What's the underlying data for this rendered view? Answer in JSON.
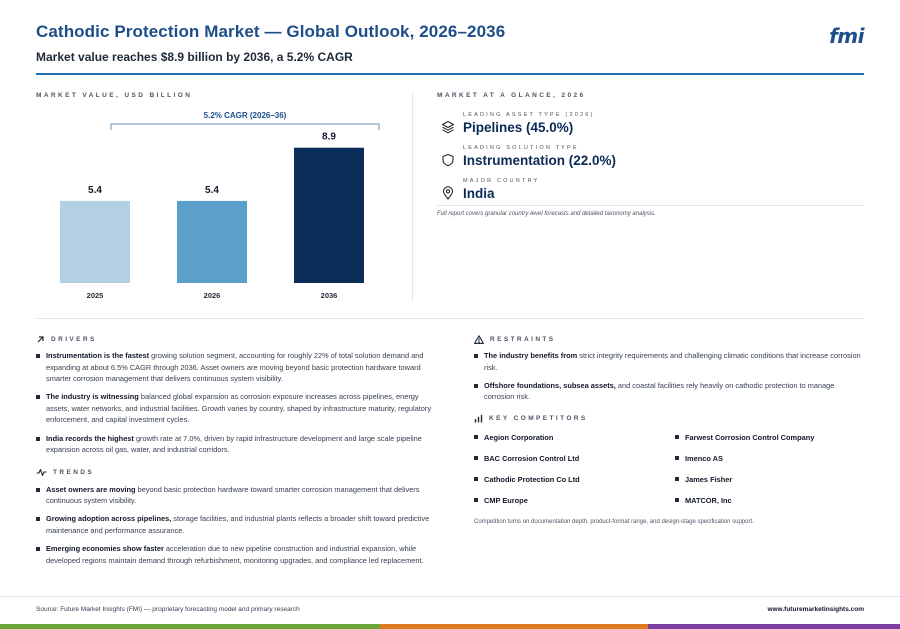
{
  "header": {
    "title": "Cathodic Protection Market — Global Outlook, 2026–2036",
    "subtitle": "Market value reaches $8.9 billion by 2036, a 5.2% CAGR",
    "logo": "fmi",
    "brand_color": "#1d4e89"
  },
  "chart_section": {
    "label": "MARKET VALUE, USD BILLION"
  },
  "chart_data": {
    "type": "bar",
    "categories": [
      "2025",
      "2026",
      "2036"
    ],
    "values": [
      5.4,
      5.4,
      8.9
    ],
    "value_labels": [
      "5.4",
      "5.4",
      "8.9"
    ],
    "colors": [
      "#b3cfe2",
      "#5b9fcb",
      "#0b2d5a"
    ],
    "annotation": "5.2% CAGR (2026–36)",
    "ylim": [
      0,
      10
    ],
    "grid": false,
    "legend": "none"
  },
  "glance": {
    "label": "MARKET AT A GLANCE, 2026",
    "items": [
      {
        "caption": "LEADING ASSET TYPE (2026)",
        "value": "Pipelines (45.0%)",
        "icon": "layers-icon"
      },
      {
        "caption": "LEADING SOLUTION TYPE",
        "value": "Instrumentation (22.0%)",
        "icon": "shield-icon"
      },
      {
        "caption": "MAJOR COUNTRY",
        "value": "India",
        "icon": "map-pin-icon"
      }
    ],
    "note": "Full report covers granular country-level forecasts and detailed taxonomy analysis."
  },
  "drivers": {
    "label": "DRIVERS",
    "items": [
      {
        "bold": "Instrumentation is the fastest",
        "text": " growing solution segment, accounting for roughly 22% of total solution demand and expanding at about 6.5% CAGR through 2036. Asset owners are moving beyond basic protection hardware toward smarter corrosion management that delivers continuous system visibility."
      },
      {
        "bold": "The industry is witnessing",
        "text": " balanced global expansion as corrosion exposure increases across pipelines, energy assets, water networks, and industrial facilities. Growth varies by country, shaped by infrastructure maturity, regulatory enforcement, and capital investment cycles."
      },
      {
        "bold": "India records the highest",
        "text": " growth rate at 7.0%, driven by rapid infrastructure development and large scale pipeline expansion across oil gas, water, and industrial corridors."
      }
    ]
  },
  "trends": {
    "label": "TRENDS",
    "items": [
      {
        "bold": "Asset owners are moving",
        "text": " beyond basic protection hardware toward smarter corrosion management that delivers continuous system visibility."
      },
      {
        "bold": "Growing adoption across pipelines,",
        "text": " storage facilities, and industrial plants reflects a broader shift toward predictive maintenance and performance assurance."
      },
      {
        "bold": "Emerging economies show faster",
        "text": " acceleration due to new pipeline construction and industrial expansion, while developed regions maintain demand through refurbishment, monitoring upgrades, and compliance led replacement."
      }
    ]
  },
  "restraints": {
    "label": "RESTRAINTS",
    "items": [
      {
        "bold": "The industry benefits from",
        "text": " strict integrity requirements and challenging climatic conditions that increase corrosion risk."
      },
      {
        "bold": "Offshore foundations, subsea assets,",
        "text": " and coastal facilities rely heavily on cathodic protection to manage corrosion risk."
      }
    ]
  },
  "competitors": {
    "label": "KEY COMPETITORS",
    "items": [
      "Aegion Corporation",
      "Farwest Corrosion Control Company",
      "BAC Corrosion Control Ltd",
      "Imenco AS",
      "Cathodic Protection Co Ltd",
      "James Fisher",
      "CMP Europe",
      "MATCOR, Inc"
    ],
    "note": "Competition turns on documentation depth, product-format range, and design-stage specification support."
  },
  "footer": {
    "source": "Source: Future Market Insights (FMI) — proprietary forecasting model and primary research",
    "website": "www.futuremarketinsights.com",
    "stripe_colors": [
      "#6aa53b",
      "#e07b24",
      "#7b3fa0"
    ]
  }
}
